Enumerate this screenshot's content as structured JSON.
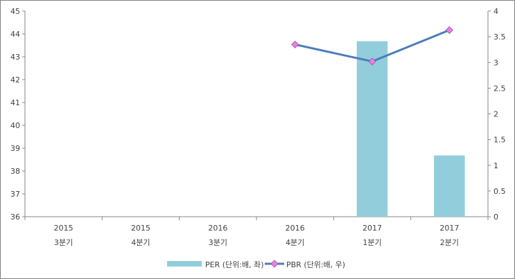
{
  "chart_data": {
    "type": "bar+line",
    "categories": [
      {
        "year": "2015",
        "quarter": "3분기"
      },
      {
        "year": "2015",
        "quarter": "4분기"
      },
      {
        "year": "2016",
        "quarter": "3분기"
      },
      {
        "year": "2016",
        "quarter": "4분기"
      },
      {
        "year": "2017",
        "quarter": "1분기"
      },
      {
        "year": "2017",
        "quarter": "2분기"
      }
    ],
    "series": [
      {
        "name": "PER (단위:배, 좌)",
        "type": "bar",
        "axis": "left",
        "color": "#92cddc",
        "values": [
          null,
          null,
          null,
          null,
          43.68,
          38.68
        ]
      },
      {
        "name": "PBR (단위:배, 우)",
        "type": "line",
        "axis": "right",
        "color": "#4a7ebb",
        "marker_color": "#e680e6",
        "values": [
          null,
          null,
          null,
          3.35,
          3.02,
          3.63
        ]
      }
    ],
    "y_left": {
      "min": 36,
      "max": 45,
      "ticks": [
        "36",
        "37",
        "38",
        "39",
        "40",
        "41",
        "42",
        "43",
        "44",
        "45"
      ]
    },
    "y_right": {
      "min": 0,
      "max": 4,
      "ticks": [
        "0",
        "0.5",
        "1",
        "1.5",
        "2",
        "2.5",
        "3",
        "3.5",
        "4"
      ]
    },
    "grid": false,
    "legend_position": "bottom"
  }
}
